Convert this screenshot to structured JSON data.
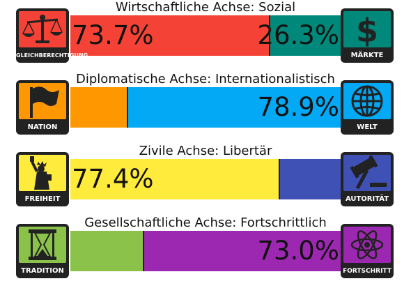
{
  "axes": [
    {
      "title": "Wirtschaftliche Achse: Sozial",
      "left": {
        "label": "GLEICHBERECHTIGUNG",
        "percent_text": "73.7%",
        "value": 73.7,
        "color": "#f44336",
        "icon": "scales-icon",
        "icon_bg": "#f44336"
      },
      "right": {
        "label": "MÄRKTE",
        "percent_text": "26.3%",
        "value": 26.3,
        "color": "#00897b",
        "icon": "dollar-icon",
        "icon_bg": "#00897b"
      }
    },
    {
      "title": "Diplomatische Achse: Internationalistisch",
      "left": {
        "label": "NATION",
        "percent_text": "",
        "value": 21.1,
        "color": "#ff9800",
        "icon": "flag-icon",
        "icon_bg": "#ff9800"
      },
      "right": {
        "label": "WELT",
        "percent_text": "78.9%",
        "value": 78.9,
        "color": "#03a9f4",
        "icon": "globe-icon",
        "icon_bg": "#03a9f4"
      }
    },
    {
      "title": "Zivile Achse: Libertär",
      "left": {
        "label": "FREIHEIT",
        "percent_text": "77.4%",
        "value": 77.4,
        "color": "#ffeb3b",
        "icon": "statue-of-liberty-icon",
        "icon_bg": "#ffeb3b"
      },
      "right": {
        "label": "AUTORITÄT",
        "percent_text": "",
        "value": 22.6,
        "color": "#3f51b5",
        "icon": "gavel-icon",
        "icon_bg": "#3f51b5"
      }
    },
    {
      "title": "Gesellschaftliche Achse: Fortschrittlich",
      "left": {
        "label": "TRADITION",
        "percent_text": "",
        "value": 27.0,
        "color": "#8bc34a",
        "icon": "hourglass-icon",
        "icon_bg": "#8bc34a"
      },
      "right": {
        "label": "FORTSCHRITT",
        "percent_text": "73.0%",
        "value": 73.0,
        "color": "#9c27b0",
        "icon": "atom-icon",
        "icon_bg": "#9c27b0"
      }
    }
  ]
}
